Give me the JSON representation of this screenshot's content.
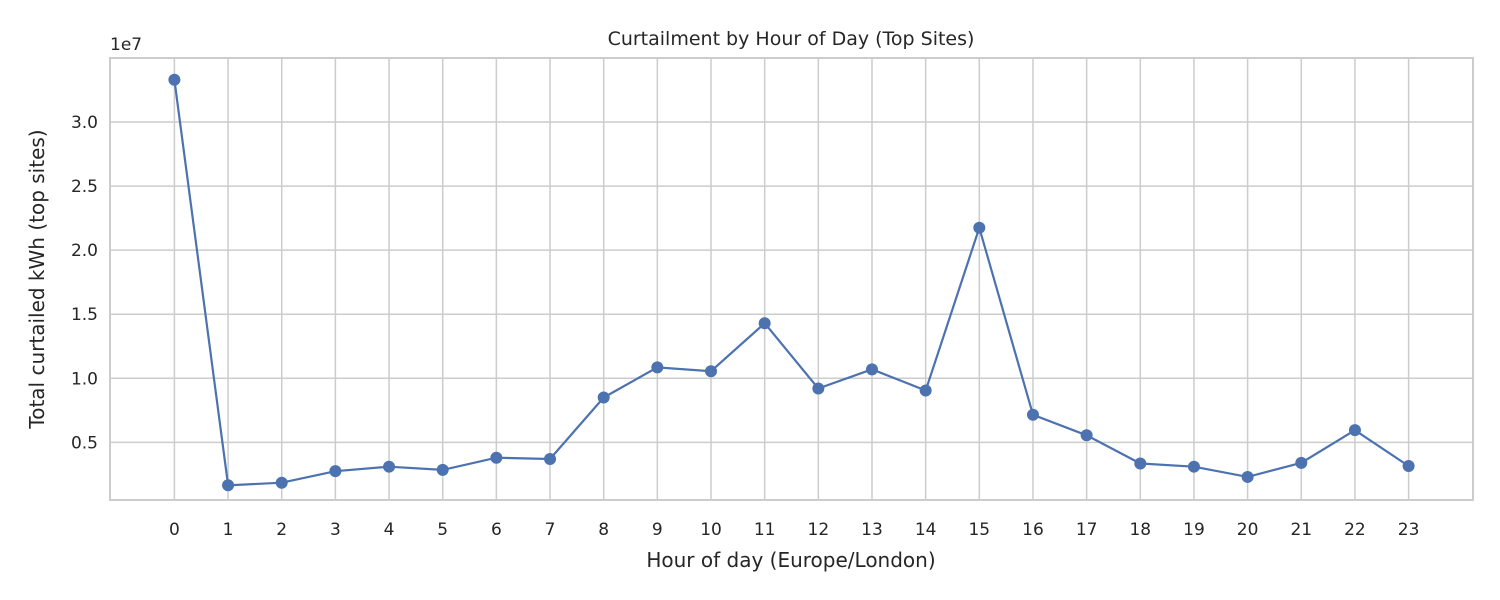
{
  "chart_data": {
    "type": "line",
    "title": "Curtailment by Hour of Day (Top Sites)",
    "xlabel": "Hour of day (Europe/London)",
    "ylabel": "Total curtailed kWh (top sites)",
    "y_offset_label": "1e7",
    "x": [
      0,
      1,
      2,
      3,
      4,
      5,
      6,
      7,
      8,
      9,
      10,
      11,
      12,
      13,
      14,
      15,
      16,
      17,
      18,
      19,
      20,
      21,
      22,
      23
    ],
    "x_ticks": [
      "0",
      "1",
      "2",
      "3",
      "4",
      "5",
      "6",
      "7",
      "8",
      "9",
      "10",
      "11",
      "12",
      "13",
      "14",
      "15",
      "16",
      "17",
      "18",
      "19",
      "20",
      "21",
      "22",
      "23"
    ],
    "xlim": [
      -1.2,
      24.2
    ],
    "y_ticks": [
      0.5,
      1.0,
      1.5,
      2.0,
      2.5,
      3.0
    ],
    "y_tick_labels": [
      "0.5",
      "1.0",
      "1.5",
      "2.0",
      "2.5",
      "3.0"
    ],
    "ylim": [
      0.05,
      3.5
    ],
    "y_scale_note": "values in units of 1e7 kWh",
    "series": [
      {
        "color": "#4c72b0",
        "marker": "circle",
        "values": [
          3.33,
          0.165,
          0.185,
          0.275,
          0.31,
          0.285,
          0.38,
          0.37,
          0.85,
          1.085,
          1.055,
          1.43,
          0.92,
          1.07,
          0.905,
          2.175,
          0.715,
          0.555,
          0.335,
          0.31,
          0.23,
          0.34,
          0.595,
          0.315
        ]
      }
    ],
    "grid": true,
    "legend": "none"
  }
}
